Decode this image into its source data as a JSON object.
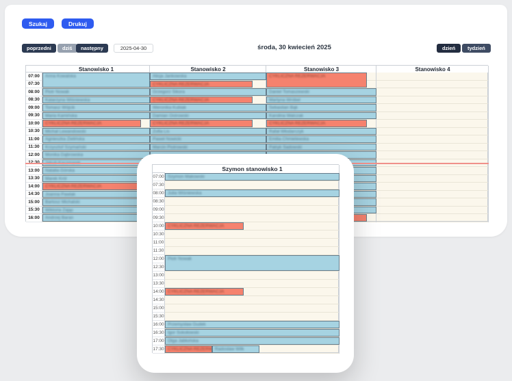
{
  "colors": {
    "primary": "#2e5bf0",
    "navy": "#2c3a52",
    "navy-dark": "#232d40",
    "navy-light": "#3e4b63",
    "muted": "#97a1af",
    "booking": "#a6d3e2",
    "recurring": "#f5826e",
    "timeline": "#f0908a",
    "cream": "#fbf7ec",
    "grid": "#cbd0d6",
    "rowline": "#e9e5d7",
    "evtborder": "#667d8b"
  },
  "actions": {
    "search": "Szukaj",
    "print": "Drukuj"
  },
  "toolbar": {
    "prev": "poprzedni",
    "today": "dziś",
    "next": "następny",
    "date": "2025-04-30",
    "title": "środa, 30 kwiecień 2025",
    "day": "dzień",
    "week": "tydzień"
  },
  "labels": {
    "recurring": "CYKLICZNA REZERWACJA"
  },
  "current_time_row": "12:30",
  "main_table": {
    "times": [
      "07:00",
      "07:30",
      "08:00",
      "08:30",
      "09:00",
      "09:30",
      "10:00",
      "10:30",
      "11:00",
      "11:30",
      "12:00",
      "12:30",
      "13:00",
      "13:30",
      "14:00",
      "14:30",
      "15:00",
      "15:30",
      "16:00"
    ],
    "columns": [
      {
        "header": "Stanowisko 1",
        "cells": [
          {
            "row": 0,
            "span": 2,
            "type": "booking",
            "label": "Anna Kowalska"
          },
          {
            "row": 2,
            "type": "booking",
            "label": "Piotr Nowak"
          },
          {
            "row": 3,
            "type": "booking",
            "label": "Katarzyna Wiśniewska"
          },
          {
            "row": 4,
            "type": "booking",
            "label": "Tomasz Wójcik"
          },
          {
            "row": 5,
            "type": "booking",
            "label": "Maria Kamińska"
          },
          {
            "row": 6,
            "type": "recurring",
            "w": 0.92
          },
          {
            "row": 7,
            "type": "booking",
            "label": "Michał Lewandowski"
          },
          {
            "row": 8,
            "type": "booking",
            "label": "Agnieszka Zielińska"
          },
          {
            "row": 9,
            "type": "booking",
            "label": "Krzysztof Szymański"
          },
          {
            "row": 10,
            "type": "booking",
            "label": "Monika Dąbrowska"
          },
          {
            "row": 11,
            "type": "booking",
            "label": "Jakub Kaczmarek"
          },
          {
            "row": 12,
            "type": "booking",
            "label": "Natalia Górska"
          },
          {
            "row": 13,
            "type": "booking",
            "label": "Marek Król"
          },
          {
            "row": 14,
            "type": "recurring",
            "w": 0.92
          },
          {
            "row": 15,
            "type": "booking",
            "label": "Joanna Pawlak"
          },
          {
            "row": 16,
            "type": "booking",
            "label": "Bartosz Michalski"
          },
          {
            "row": 17,
            "type": "booking",
            "label": "Wiktoria Zając"
          },
          {
            "row": 18,
            "type": "booking",
            "label": "Andrzej Baran"
          }
        ]
      },
      {
        "header": "Stanowisko 2",
        "cells": [
          {
            "row": 0,
            "type": "booking",
            "label": "Alicja Jankowska"
          },
          {
            "row": 1,
            "type": "recurring",
            "w": 0.88
          },
          {
            "row": 2,
            "type": "booking",
            "label": "Grzegorz Sikora"
          },
          {
            "row": 3,
            "type": "recurring",
            "w": 0.88
          },
          {
            "row": 4,
            "type": "booking",
            "label": "Weronika Kubiak"
          },
          {
            "row": 5,
            "type": "booking",
            "label": "Damian Ostrowski"
          },
          {
            "row": 6,
            "type": "recurring",
            "w": 0.88
          },
          {
            "row": 7,
            "type": "booking",
            "label": "Zofia Lis"
          },
          {
            "row": 8,
            "type": "booking",
            "label": "Paweł Nowicki"
          },
          {
            "row": 9,
            "type": "booking",
            "label": "Marcin Piotrowski"
          },
          {
            "row": 10,
            "type": "booking",
            "label": ""
          }
        ]
      },
      {
        "header": "Stanowisko 3",
        "cells": [
          {
            "row": 0,
            "span": 2,
            "type": "recurring",
            "w": 0.91
          },
          {
            "row": 2,
            "type": "booking",
            "label": "Daniel Tomaszewski"
          },
          {
            "row": 3,
            "type": "booking",
            "label": "Martyna Wróbel"
          },
          {
            "row": 4,
            "type": "booking",
            "label": "Sebastian Bąk"
          },
          {
            "row": 5,
            "type": "booking",
            "label": "Karolina Walczak"
          },
          {
            "row": 6,
            "type": "recurring",
            "w": 0.91
          },
          {
            "row": 7,
            "type": "booking",
            "label": "Rafał Włodarczyk"
          },
          {
            "row": 8,
            "type": "booking",
            "label": "Emilia Chmielewska"
          },
          {
            "row": 9,
            "type": "booking",
            "label": "Patryk Sadowski"
          },
          {
            "row": 10,
            "type": "booking",
            "label": ""
          },
          {
            "row": 11,
            "type": "booking",
            "label": ""
          },
          {
            "row": 12,
            "type": "booking",
            "label": ""
          },
          {
            "row": 13,
            "type": "booking",
            "label": ""
          },
          {
            "row": 14,
            "type": "booking",
            "label": ""
          },
          {
            "row": 15,
            "type": "booking",
            "label": ""
          },
          {
            "row": 16,
            "type": "booking",
            "label": ""
          },
          {
            "row": 17,
            "type": "booking",
            "label": ""
          },
          {
            "row": 18,
            "type": "recurring",
            "w": 0.91
          }
        ]
      },
      {
        "header": "Stanowisko 4",
        "cells": []
      }
    ]
  },
  "modal_table": {
    "times": [
      "07:00",
      "07:30",
      "08:00",
      "08:30",
      "09:00",
      "09:30",
      "10:00",
      "10:30",
      "11:00",
      "11:30",
      "12:00",
      "12:30",
      "13:00",
      "13:30",
      "14:00",
      "14:30",
      "15:00",
      "15:30",
      "16:00",
      "16:30",
      "17:00",
      "17:30"
    ],
    "columns": [
      {
        "header": "Szymon stanowisko 1",
        "cells": [
          {
            "row": 0,
            "type": "booking",
            "label": "Szymon Makowski"
          },
          {
            "row": 2,
            "type": "booking",
            "label": "Julia Wiśniewska"
          },
          {
            "row": 6,
            "type": "recurring",
            "w": 0.45
          },
          {
            "row": 10,
            "span": 2,
            "type": "booking",
            "label": "Piotr Nowak"
          },
          {
            "row": 14,
            "type": "recurring",
            "w": 0.45
          },
          {
            "row": 18,
            "type": "booking",
            "label": "Przemysław Dudek"
          },
          {
            "row": 19,
            "type": "booking",
            "label": "Igor Sokołowski"
          },
          {
            "row": 20,
            "type": "booking",
            "label": "Olga Jabłońska"
          },
          {
            "row": 21,
            "type": "recurring",
            "w": 0.27
          },
          {
            "row": 21,
            "type": "booking",
            "label": "Radosław Wilk",
            "x": 0.27,
            "w": 0.27
          }
        ]
      }
    ]
  }
}
